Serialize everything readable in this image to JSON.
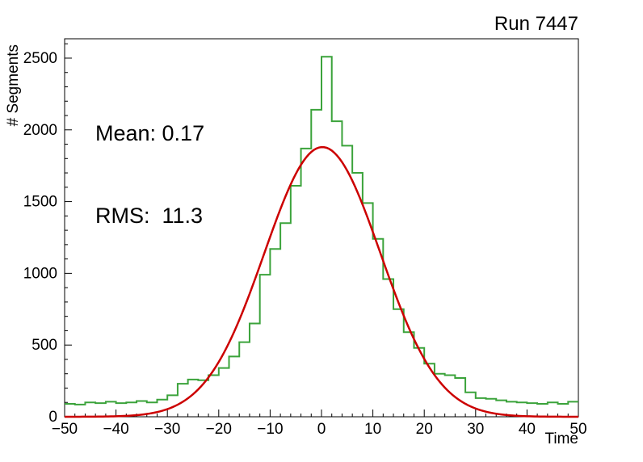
{
  "title": "Run 7447",
  "stats": {
    "mean_label": "Mean: 0.17",
    "rms_label": "RMS:  11.3",
    "mean": 0.17,
    "rms": 11.3
  },
  "chart_data": {
    "type": "bar",
    "subtype": "step-histogram-with-gaussian-fit",
    "title": "Run 7447",
    "xlabel": "Time",
    "ylabel": "# Segments",
    "xlim": [
      -50,
      50
    ],
    "ylim": [
      0,
      2635
    ],
    "grid": false,
    "legend": "none",
    "bin_width": 2,
    "x_ticks": [
      -50,
      -40,
      -30,
      -20,
      -10,
      0,
      10,
      20,
      30,
      40,
      50
    ],
    "y_ticks": [
      0,
      500,
      1000,
      1500,
      2000,
      2500
    ],
    "x_minor_step": 2,
    "y_minor_step": 100,
    "bin_centers": [
      -49,
      -47,
      -45,
      -43,
      -41,
      -39,
      -37,
      -35,
      -33,
      -31,
      -29,
      -27,
      -25,
      -23,
      -21,
      -19,
      -17,
      -15,
      -13,
      -11,
      -9,
      -7,
      -5,
      -3,
      -1,
      1,
      3,
      5,
      7,
      9,
      11,
      13,
      15,
      17,
      19,
      21,
      23,
      25,
      27,
      29,
      31,
      33,
      35,
      37,
      39,
      41,
      43,
      45,
      47,
      49
    ],
    "counts": [
      90,
      85,
      100,
      95,
      105,
      95,
      100,
      110,
      100,
      120,
      150,
      230,
      260,
      255,
      290,
      340,
      420,
      520,
      650,
      990,
      1170,
      1350,
      1610,
      1870,
      2140,
      2510,
      2060,
      1890,
      1700,
      1490,
      1240,
      960,
      750,
      590,
      480,
      370,
      300,
      290,
      270,
      170,
      130,
      125,
      115,
      105,
      100,
      95,
      90,
      100,
      90,
      105
    ],
    "fit": {
      "type": "gaussian",
      "amplitude": 1880,
      "mean": 0.17,
      "sigma": 11.3
    },
    "colors": {
      "histogram": "#3ba33b",
      "fit": "#cc0000",
      "axis": "#000000",
      "text": "#000000",
      "background": "#ffffff"
    }
  }
}
